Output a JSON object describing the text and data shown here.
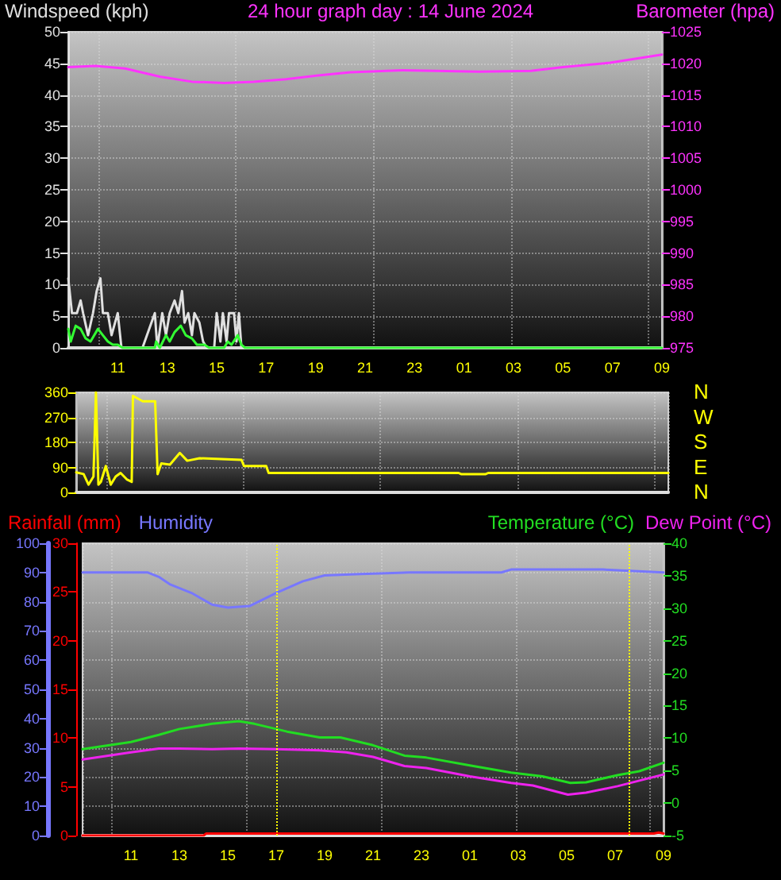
{
  "chart_data": [
    {
      "type": "line",
      "title": "24 hour graph day : 14 June 2024",
      "ylabel": "Windspeed (kph)",
      "y2label": "Barometer (hpa)",
      "xlim": [
        "2024-06-14T09:00",
        "2024-06-15T09:00"
      ],
      "xticks": [
        {
          "value": "2024-06-14T11:00",
          "label": "11"
        },
        {
          "value": "2024-06-14T13:00",
          "label": "13"
        },
        {
          "value": "2024-06-14T15:00",
          "label": "15"
        },
        {
          "value": "2024-06-14T17:00",
          "label": "17"
        },
        {
          "value": "2024-06-14T19:00",
          "label": "19"
        },
        {
          "value": "2024-06-14T21:00",
          "label": "21"
        },
        {
          "value": "2024-06-14T23:00",
          "label": "23"
        },
        {
          "value": "2024-06-15T01:00",
          "label": "01"
        },
        {
          "value": "2024-06-15T03:00",
          "label": "03"
        },
        {
          "value": "2024-06-15T05:00",
          "label": "05"
        },
        {
          "value": "2024-06-15T07:00",
          "label": "07"
        },
        {
          "value": "2024-06-15T09:00",
          "label": "09"
        }
      ],
      "ylim": [
        0,
        50
      ],
      "yticks": [
        0,
        5,
        10,
        15,
        20,
        25,
        30,
        35,
        40,
        45,
        50
      ],
      "y2lim": [
        975,
        1025
      ],
      "y2ticks": [
        975,
        980,
        985,
        990,
        995,
        1000,
        1005,
        1010,
        1015,
        1020,
        1025
      ],
      "grid": true,
      "marker": "none",
      "line_style": "solid",
      "series": [
        {
          "color": "#e0e0e0",
          "x": [
            "2024-06-14T09:00",
            "2024-06-14T09:09",
            "2024-06-14T09:21",
            "2024-06-14T09:30",
            "2024-06-14T09:36",
            "2024-06-14T09:48",
            "2024-06-14T10:00",
            "2024-06-14T10:09",
            "2024-06-14T10:18",
            "2024-06-14T10:24",
            "2024-06-14T10:36",
            "2024-06-14T10:45",
            "2024-06-14T11:00",
            "2024-06-14T11:09",
            "2024-06-14T12:00",
            "2024-06-14T12:30",
            "2024-06-14T12:36",
            "2024-06-14T12:48",
            "2024-06-14T12:57",
            "2024-06-14T13:06",
            "2024-06-14T13:18",
            "2024-06-14T13:27",
            "2024-06-14T13:36",
            "2024-06-14T13:42",
            "2024-06-14T13:51",
            "2024-06-14T14:00",
            "2024-06-14T14:06",
            "2024-06-14T14:18",
            "2024-06-14T14:27",
            "2024-06-14T14:36",
            "2024-06-14T14:54",
            "2024-06-14T15:00",
            "2024-06-14T15:09",
            "2024-06-14T15:15",
            "2024-06-14T15:24",
            "2024-06-14T15:30",
            "2024-06-14T15:42",
            "2024-06-14T15:48",
            "2024-06-14T15:54",
            "2024-06-14T16:00",
            "2024-06-15T09:00"
          ],
          "values": [
            11,
            5.5,
            5.5,
            7.5,
            5.5,
            2,
            5.5,
            9,
            11,
            5.5,
            5.5,
            2,
            5.5,
            0,
            0,
            5.5,
            0,
            5.5,
            2,
            5.5,
            7.5,
            5.5,
            9,
            4,
            5.5,
            2,
            5.5,
            4,
            1,
            0,
            0,
            5.5,
            1,
            5.5,
            1,
            5.5,
            5.5,
            1,
            5.5,
            0,
            0
          ]
        },
        {
          "color": "#33ff33",
          "x": [
            "2024-06-14T09:00",
            "2024-06-14T09:06",
            "2024-06-14T09:18",
            "2024-06-14T09:30",
            "2024-06-14T09:42",
            "2024-06-14T09:54",
            "2024-06-14T10:12",
            "2024-06-14T10:24",
            "2024-06-14T10:36",
            "2024-06-14T10:48",
            "2024-06-14T11:00",
            "2024-06-14T11:12",
            "2024-06-14T12:30",
            "2024-06-14T12:33",
            "2024-06-14T12:42",
            "2024-06-14T12:57",
            "2024-06-14T13:06",
            "2024-06-14T13:18",
            "2024-06-14T13:33",
            "2024-06-14T13:45",
            "2024-06-14T14:00",
            "2024-06-14T14:12",
            "2024-06-14T14:30",
            "2024-06-14T14:42",
            "2024-06-14T15:18",
            "2024-06-14T15:27",
            "2024-06-14T15:36",
            "2024-06-14T15:51",
            "2024-06-14T16:00",
            "2024-06-14T16:09",
            "2024-06-15T09:00"
          ],
          "values": [
            3,
            1,
            3.5,
            3,
            1.5,
            1,
            3,
            2,
            1,
            0.5,
            0.5,
            0,
            0,
            1,
            0,
            2,
            1,
            2.5,
            3.5,
            2,
            1.5,
            0.5,
            0.5,
            0,
            0,
            1,
            0.5,
            2,
            0.5,
            0,
            0
          ]
        },
        {
          "color": "#ff33ff",
          "axis": "y2",
          "x": [
            "2024-06-14T09:00",
            "2024-06-14T10:06",
            "2024-06-14T11:18",
            "2024-06-14T12:42",
            "2024-06-14T14:00",
            "2024-06-14T15:18",
            "2024-06-14T16:30",
            "2024-06-14T17:48",
            "2024-06-14T19:06",
            "2024-06-14T20:24",
            "2024-06-14T22:30",
            "2024-06-15T01:36",
            "2024-06-15T03:42",
            "2024-06-15T05:00",
            "2024-06-15T06:54",
            "2024-06-15T09:00"
          ],
          "values": [
            1019.4,
            1019.6,
            1019.2,
            1017.9,
            1017.1,
            1016.9,
            1017.1,
            1017.5,
            1018.1,
            1018.6,
            1018.9,
            1018.7,
            1018.8,
            1019.4,
            1020.1,
            1021.4
          ]
        }
      ]
    },
    {
      "type": "line",
      "xlim": [
        "2024-06-14T09:00",
        "2024-06-15T09:00"
      ],
      "xticks": [
        "2024-06-14T11:00",
        "2024-06-14T13:00",
        "2024-06-14T15:00",
        "2024-06-14T17:00",
        "2024-06-14T19:00",
        "2024-06-14T21:00",
        "2024-06-14T23:00",
        "2024-06-15T01:00",
        "2024-06-15T03:00",
        "2024-06-15T05:00",
        "2024-06-15T07:00",
        "2024-06-15T09:00"
      ],
      "ylim": [
        0,
        360
      ],
      "yticks": [
        0,
        90,
        180,
        270,
        360
      ],
      "tick_labels": "y",
      "grid": true,
      "marker": "none",
      "line_style": "solid",
      "annotations": [
        "N",
        "W",
        "S",
        "E",
        "N"
      ],
      "series": [
        {
          "color": "#ffff00",
          "x": [
            "2024-06-14T09:00",
            "2024-06-14T09:18",
            "2024-06-14T09:30",
            "2024-06-14T09:42",
            "2024-06-14T09:48",
            "2024-06-14T09:54",
            "2024-06-14T10:00",
            "2024-06-14T10:12",
            "2024-06-14T10:24",
            "2024-06-14T10:36",
            "2024-06-14T10:48",
            "2024-06-14T11:03",
            "2024-06-14T11:15",
            "2024-06-14T11:18",
            "2024-06-14T11:42",
            "2024-06-14T12:12",
            "2024-06-14T12:18",
            "2024-06-14T12:27",
            "2024-06-14T12:48",
            "2024-06-14T13:12",
            "2024-06-14T13:30",
            "2024-06-14T14:00",
            "2024-06-14T15:42",
            "2024-06-14T15:48",
            "2024-06-14T16:42",
            "2024-06-14T16:48",
            "2024-06-15T00:30",
            "2024-06-15T00:36",
            "2024-06-15T01:36",
            "2024-06-15T01:42",
            "2024-06-15T09:00"
          ],
          "values": [
            72,
            66,
            28,
            57,
            360,
            28,
            38,
            95,
            28,
            57,
            70,
            47,
            38,
            347,
            328,
            328,
            66,
            104,
            100,
            142,
            114,
            123,
            117,
            95,
            95,
            70,
            70,
            66,
            66,
            70,
            70
          ]
        }
      ]
    },
    {
      "type": "line",
      "xlim": [
        "2024-06-14T09:00",
        "2024-06-15T09:00"
      ],
      "xticks": [
        {
          "value": "2024-06-14T11:00",
          "label": "11"
        },
        {
          "value": "2024-06-14T13:00",
          "label": "13"
        },
        {
          "value": "2024-06-14T15:00",
          "label": "15"
        },
        {
          "value": "2024-06-14T17:00",
          "label": "17"
        },
        {
          "value": "2024-06-14T19:00",
          "label": "19"
        },
        {
          "value": "2024-06-14T21:00",
          "label": "21"
        },
        {
          "value": "2024-06-14T23:00",
          "label": "23"
        },
        {
          "value": "2024-06-15T01:00",
          "label": "01"
        },
        {
          "value": "2024-06-15T03:00",
          "label": "03"
        },
        {
          "value": "2024-06-15T05:00",
          "label": "05"
        },
        {
          "value": "2024-06-15T07:00",
          "label": "07"
        },
        {
          "value": "2024-06-15T09:00",
          "label": "09"
        }
      ],
      "ylim": [
        0,
        100
      ],
      "yticks": [
        0,
        10,
        20,
        30,
        40,
        50,
        60,
        70,
        80,
        90,
        100
      ],
      "y2lim": [
        -5,
        40
      ],
      "y2ticks": [
        -5,
        0,
        5,
        10,
        15,
        20,
        25,
        30,
        35,
        40
      ],
      "y3lim": [
        0,
        30
      ],
      "y3ticks": [
        0,
        5,
        10,
        15,
        20,
        25,
        30
      ],
      "grid": true,
      "legend": "top",
      "marker": "none",
      "line_style": "solid",
      "ref_lines": [
        {
          "axis": "x",
          "value": "2024-06-14T17:00",
          "color": "#ffff00",
          "line_style": "dotted"
        },
        {
          "axis": "x",
          "value": "2024-06-15T07:36",
          "color": "#ffff00",
          "line_style": "dotted"
        }
      ],
      "series": [
        {
          "name": "Rainfall (mm)",
          "color": "#ff0000",
          "axis": "y3",
          "x": [
            "2024-06-14T09:00",
            "2024-06-14T14:00",
            "2024-06-14T14:06",
            "2024-06-15T08:36",
            "2024-06-15T08:48",
            "2024-06-15T09:00"
          ],
          "values": [
            0,
            0,
            0.2,
            0.2,
            0.3,
            0.2
          ]
        },
        {
          "name": "Humidity",
          "color": "#7777ff",
          "x": [
            "2024-06-14T09:00",
            "2024-06-14T11:42",
            "2024-06-14T12:09",
            "2024-06-14T12:36",
            "2024-06-14T13:30",
            "2024-06-14T14:21",
            "2024-06-14T15:00",
            "2024-06-14T15:54",
            "2024-06-14T17:00",
            "2024-06-14T18:06",
            "2024-06-14T19:00",
            "2024-06-14T20:30",
            "2024-06-14T22:30",
            "2024-06-15T02:18",
            "2024-06-15T02:42",
            "2024-06-15T06:30",
            "2024-06-15T09:00"
          ],
          "values": [
            90,
            90,
            88.5,
            86,
            83,
            79,
            78,
            78.5,
            83,
            87,
            89,
            89.5,
            90,
            90,
            91,
            91,
            90
          ]
        },
        {
          "name": "Temperature (°C)",
          "color": "#22dd22",
          "axis": "y2",
          "x": [
            "2024-06-14T09:00",
            "2024-06-14T11:00",
            "2024-06-14T12:09",
            "2024-06-14T13:00",
            "2024-06-14T14:21",
            "2024-06-14T15:27",
            "2024-06-14T16:06",
            "2024-06-14T17:27",
            "2024-06-14T18:48",
            "2024-06-14T19:39",
            "2024-06-14T21:00",
            "2024-06-14T22:18",
            "2024-06-14T23:12",
            "2024-06-15T01:00",
            "2024-06-15T02:42",
            "2024-06-15T04:00",
            "2024-06-15T05:09",
            "2024-06-15T05:48",
            "2024-06-15T07:06",
            "2024-06-15T08:00",
            "2024-06-15T09:00"
          ],
          "values": [
            8.3,
            9.4,
            10.5,
            11.4,
            12.2,
            12.6,
            12.2,
            11,
            10.1,
            10.1,
            8.9,
            7.3,
            7,
            5.8,
            4.7,
            4.1,
            3.1,
            3.2,
            4.3,
            4.9,
            6.2
          ]
        },
        {
          "name": "Dew Point (°C)",
          "color": "#ee22ee",
          "axis": "y2",
          "x": [
            "2024-06-14T09:00",
            "2024-06-14T11:00",
            "2024-06-14T12:09",
            "2024-06-14T13:00",
            "2024-06-14T14:21",
            "2024-06-14T15:27",
            "2024-06-14T17:00",
            "2024-06-14T18:48",
            "2024-06-14T19:54",
            "2024-06-14T21:00",
            "2024-06-14T22:18",
            "2024-06-14T23:12",
            "2024-06-15T01:00",
            "2024-06-15T02:42",
            "2024-06-15T03:36",
            "2024-06-15T05:03",
            "2024-06-15T05:48",
            "2024-06-15T07:06",
            "2024-06-15T09:00"
          ],
          "values": [
            6.7,
            7.8,
            8.4,
            8.4,
            8.3,
            8.4,
            8.3,
            8.1,
            7.8,
            7.1,
            5.7,
            5.4,
            4.1,
            3.1,
            2.7,
            1.3,
            1.6,
            2.6,
            4.4
          ]
        }
      ]
    }
  ]
}
